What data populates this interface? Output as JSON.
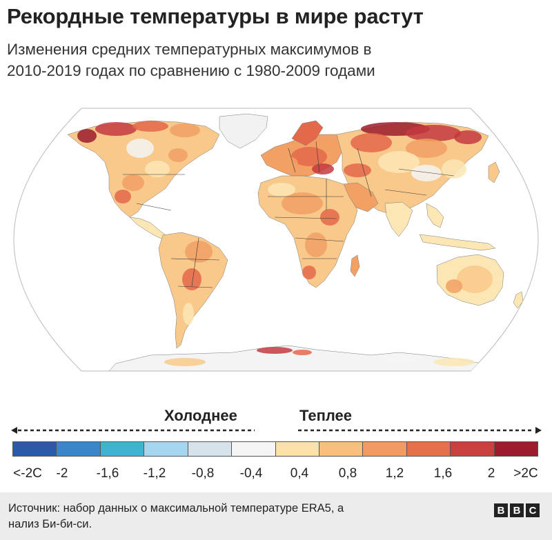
{
  "header": {
    "title": "Рекордные температуры в мире растут",
    "subtitle_line1": "Изменения средних температурных максимумов в",
    "subtitle_line2": "2010-2019 годах по сравнению с 1980-2009 годами"
  },
  "map": {
    "ocean_color": "#ffffff",
    "graticule_color": "#cfcfcf",
    "border_color": "#333333",
    "palette": {
      "light": "#fbe6b4",
      "mid": "#f8c98a",
      "orange": "#f2a063",
      "deep": "#e4694a",
      "red": "#c33a3f",
      "dark": "#9b1c2c",
      "white": "#f5f5f5"
    }
  },
  "legend": {
    "colder_label": "Холоднее",
    "warmer_label": "Теплее",
    "colors": [
      "#2d5aa6",
      "#3a86c8",
      "#3fb3d0",
      "#a5d5ef",
      "#d7e3ea",
      "#f5f5f5",
      "#fbe2a8",
      "#f8bf7f",
      "#f29a63",
      "#e5704e",
      "#c9413e",
      "#9b1c2c"
    ],
    "ticks": [
      "<-2C",
      "-2",
      "-1,6",
      "-1,2",
      "-0,8",
      "-0,4",
      "0,4",
      "0,8",
      "1,2",
      "1,6",
      "2",
      ">2C"
    ]
  },
  "footer": {
    "source_line1": "Источник: набор данных о максимальной температуре ERA5, а",
    "source_line2": "нализ Би-би-си.",
    "logo_letters": [
      "B",
      "B",
      "C"
    ]
  }
}
